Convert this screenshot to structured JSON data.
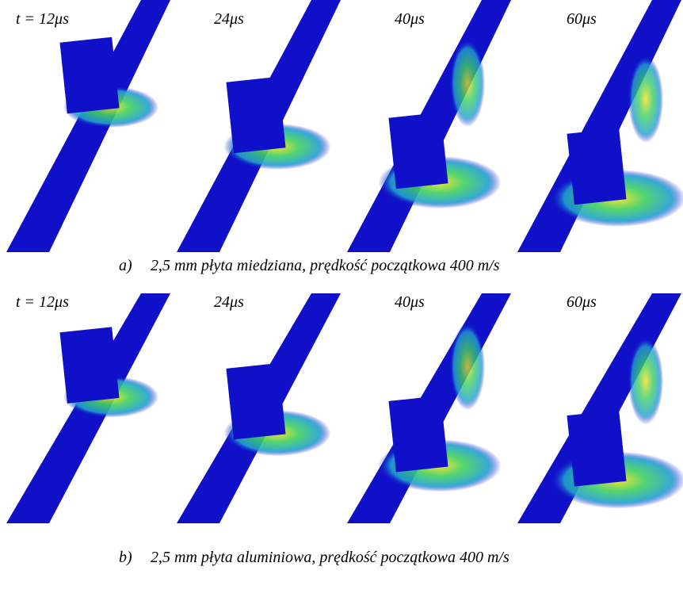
{
  "rows": [
    {
      "time_labels": [
        "t = 12μs",
        "24μs",
        "40μs",
        "60μs"
      ],
      "caption_label": "a)",
      "caption": "2,5 mm płyta miedziana, prędkość początkowa 400 m/s"
    },
    {
      "time_labels": [
        "t = 12μs",
        "24μs",
        "40μs",
        "60μs"
      ],
      "caption_label": "b)",
      "caption": "2,5 mm płyta aluminiowa, prędkość początkowa 400 m/s"
    }
  ]
}
